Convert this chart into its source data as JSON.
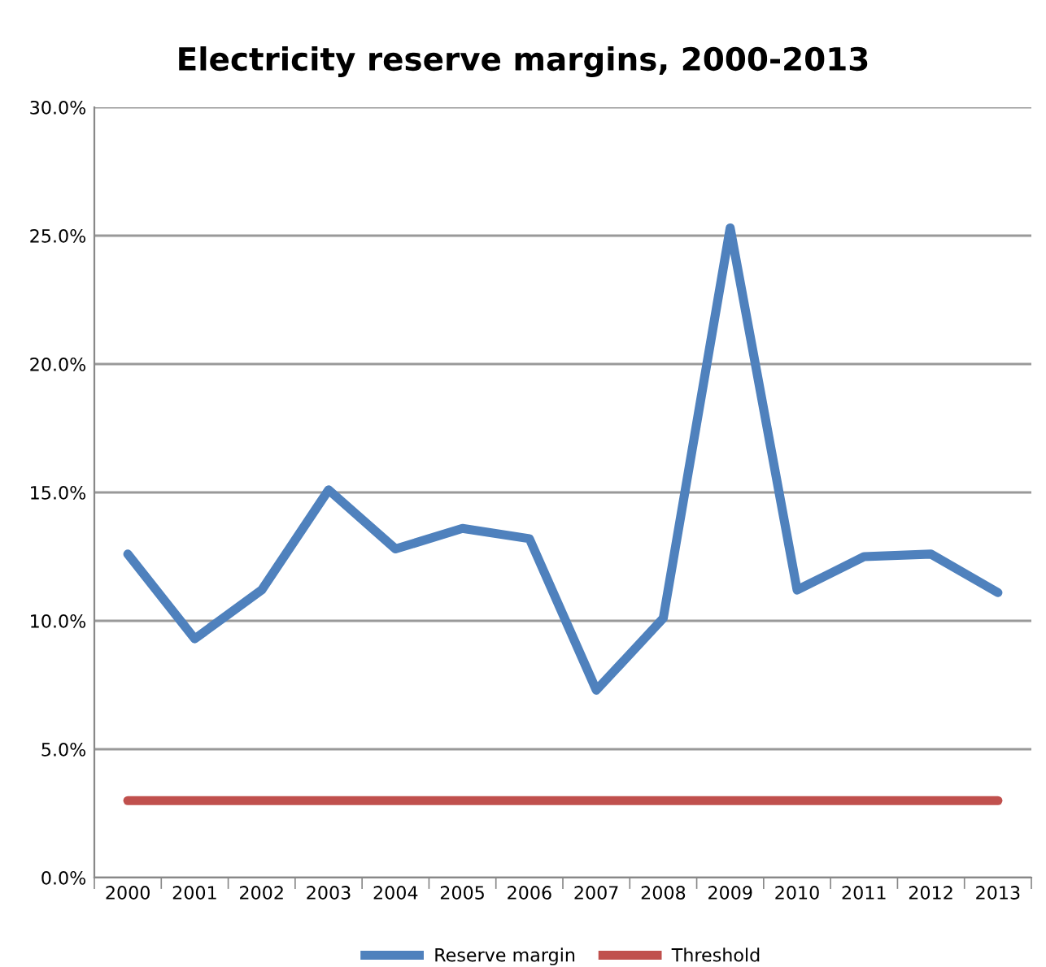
{
  "chart_data": {
    "type": "line",
    "title": "Electricity reserve margins, 2000-2013",
    "categories": [
      "2000",
      "2001",
      "2002",
      "2003",
      "2004",
      "2005",
      "2006",
      "2007",
      "2008",
      "2009",
      "2010",
      "2011",
      "2012",
      "2013"
    ],
    "series": [
      {
        "name": "Reserve margin",
        "color": "#4f81bd",
        "values": [
          12.6,
          9.3,
          11.2,
          15.1,
          12.8,
          13.6,
          13.2,
          7.3,
          10.1,
          25.3,
          11.2,
          12.5,
          12.6,
          11.1
        ]
      },
      {
        "name": "Threshold",
        "color": "#c0504d",
        "values": [
          3,
          3,
          3,
          3,
          3,
          3,
          3,
          3,
          3,
          3,
          3,
          3,
          3,
          3
        ]
      }
    ],
    "ylim": [
      0,
      30
    ],
    "yticks": [
      {
        "value": 0,
        "label": "0.0%"
      },
      {
        "value": 5,
        "label": "5.0%"
      },
      {
        "value": 10,
        "label": "10.0%"
      },
      {
        "value": 15,
        "label": "15.0%"
      },
      {
        "value": 20,
        "label": "20.0%"
      },
      {
        "value": 25,
        "label": "25.0%"
      },
      {
        "value": 30,
        "label": "30.0%"
      }
    ],
    "grid": "y",
    "legend": "bottom",
    "marker": "none",
    "line_style": "solid"
  }
}
